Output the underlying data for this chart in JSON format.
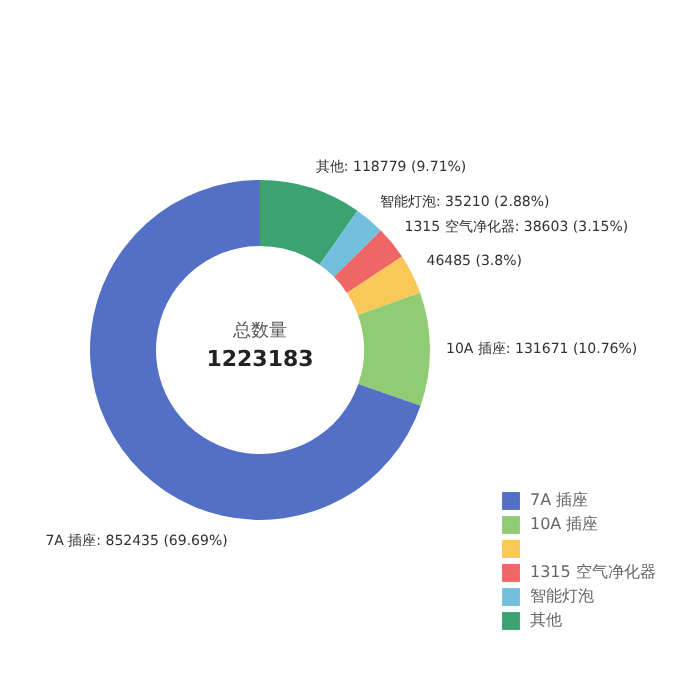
{
  "chart_data": {
    "type": "donut",
    "categories": [
      "7A 插座",
      "10A 插座",
      null,
      "1315 空气净化器",
      "智能灯泡",
      "其他"
    ],
    "values": [
      852435,
      131671,
      46485,
      38603,
      35210,
      118779
    ],
    "colors": [
      "#5470c6",
      "#91cc75",
      "#fac858",
      "#ee6666",
      "#73c0de",
      "#3ba272"
    ],
    "value_labels": [
      "7A 插座: 852435 (69.69%)",
      "10A 插座: 131671 (10.76%)",
      "46485 (3.8%)",
      "1315 空气净化器: 38603 (3.15%)",
      "智能灯泡: 35210 (2.88%)",
      "其他: 118779 (9.71%)"
    ],
    "annotations": [
      "总数量",
      "1223183"
    ],
    "legend": "right"
  }
}
